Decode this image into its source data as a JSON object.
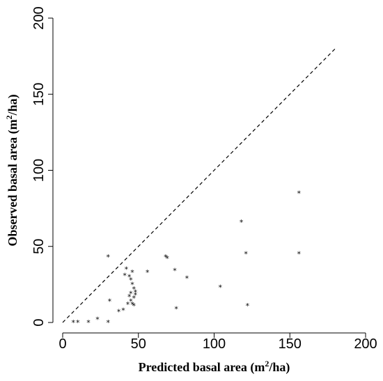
{
  "chart_data": {
    "type": "scatter",
    "title": "",
    "xlabel": {
      "pre": "Predicted basal area (m",
      "sup": "2",
      "post": "/ha)"
    },
    "ylabel": {
      "pre": "Observed basal area (m",
      "sup": "2",
      "post": "/ha)"
    },
    "xlim": [
      0,
      200
    ],
    "ylim": [
      0,
      200
    ],
    "xticks": [
      "0",
      "50",
      "100",
      "150",
      "200"
    ],
    "yticks": [
      "0",
      "50",
      "100",
      "150",
      "200"
    ],
    "grid": false,
    "marker": "*",
    "reference_line": {
      "style": "dashed",
      "x": [
        0,
        180
      ],
      "y": [
        0,
        180
      ]
    },
    "points": [
      [
        7,
        0
      ],
      [
        10,
        0
      ],
      [
        17,
        0
      ],
      [
        23,
        2
      ],
      [
        30,
        0
      ],
      [
        31,
        14
      ],
      [
        30,
        43
      ],
      [
        37,
        7
      ],
      [
        40,
        8
      ],
      [
        41,
        31
      ],
      [
        42,
        35
      ],
      [
        43,
        12
      ],
      [
        44,
        30
      ],
      [
        44,
        17
      ],
      [
        45,
        19
      ],
      [
        45,
        28
      ],
      [
        45,
        14
      ],
      [
        46,
        25
      ],
      [
        46,
        33
      ],
      [
        47,
        22
      ],
      [
        47,
        11
      ],
      [
        47,
        16
      ],
      [
        48,
        20
      ],
      [
        48,
        18
      ],
      [
        46,
        12
      ],
      [
        56,
        33
      ],
      [
        68,
        43
      ],
      [
        69,
        42
      ],
      [
        74,
        34
      ],
      [
        75,
        9
      ],
      [
        82,
        29
      ],
      [
        104,
        23
      ],
      [
        118,
        66
      ],
      [
        121,
        45
      ],
      [
        122,
        11
      ],
      [
        156,
        85
      ],
      [
        156,
        45
      ]
    ]
  }
}
